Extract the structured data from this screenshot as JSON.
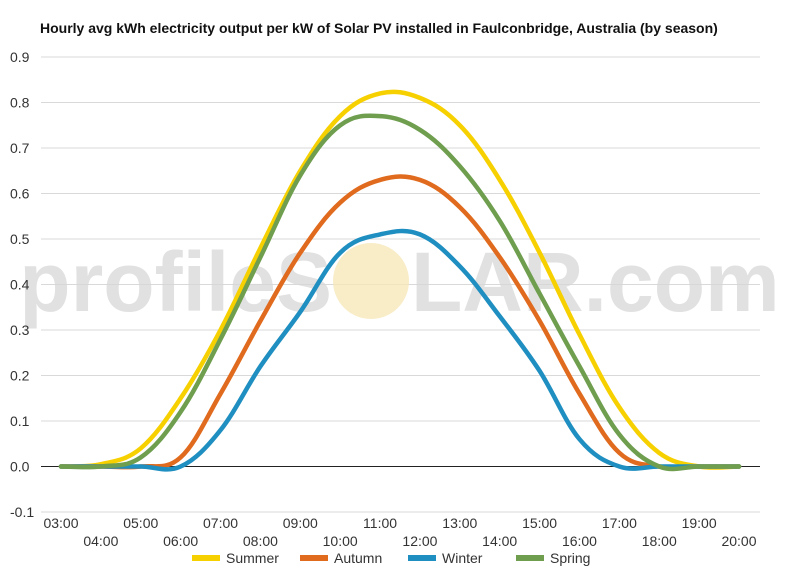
{
  "watermark": {
    "left": "profileS",
    "right": "LAR.com"
  },
  "chart_data": {
    "type": "line",
    "title": "Hourly avg kWh electricity output per kW of Solar PV installed in Faulconbridge, Australia (by season)",
    "xlabel": "",
    "ylabel": "",
    "ylim": [
      -0.1,
      0.9
    ],
    "yticks": [
      "-0.1",
      "0.0",
      "0.1",
      "0.2",
      "0.3",
      "0.4",
      "0.5",
      "0.6",
      "0.7",
      "0.8",
      "0.9"
    ],
    "x": [
      "03:00",
      "04:00",
      "05:00",
      "06:00",
      "07:00",
      "08:00",
      "09:00",
      "10:00",
      "11:00",
      "12:00",
      "13:00",
      "14:00",
      "15:00",
      "16:00",
      "17:00",
      "18:00",
      "19:00",
      "20:00"
    ],
    "grid": true,
    "legend": "bottom",
    "series": [
      {
        "name": "Summer",
        "color": "#f7d000",
        "values": [
          0.0,
          0.005,
          0.04,
          0.15,
          0.3,
          0.48,
          0.65,
          0.77,
          0.82,
          0.81,
          0.75,
          0.63,
          0.47,
          0.29,
          0.13,
          0.03,
          0.0,
          0.0
        ]
      },
      {
        "name": "Autumn",
        "color": "#e06a1d",
        "values": [
          0.0,
          0.0,
          0.0,
          0.02,
          0.16,
          0.32,
          0.47,
          0.58,
          0.63,
          0.63,
          0.57,
          0.46,
          0.32,
          0.16,
          0.03,
          0.0,
          0.0,
          0.0
        ]
      },
      {
        "name": "Winter",
        "color": "#1f8ec0",
        "values": [
          0.0,
          0.0,
          0.0,
          0.0,
          0.08,
          0.22,
          0.34,
          0.47,
          0.51,
          0.51,
          0.44,
          0.33,
          0.21,
          0.06,
          0.0,
          0.0,
          0.0,
          0.0
        ]
      },
      {
        "name": "Spring",
        "color": "#6e9e4e",
        "values": [
          0.0,
          0.0,
          0.02,
          0.12,
          0.28,
          0.46,
          0.64,
          0.75,
          0.77,
          0.74,
          0.66,
          0.54,
          0.38,
          0.22,
          0.07,
          0.0,
          0.0,
          0.0
        ]
      }
    ]
  }
}
